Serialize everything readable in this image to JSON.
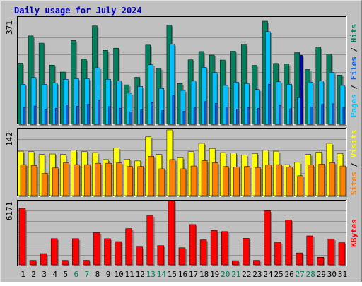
{
  "title": "Daily usage for July 2024",
  "colors": {
    "background": "#c0c0c0",
    "frame_dark": "#808080",
    "frame_light": "#e0e0e0",
    "title": "#0000c0",
    "hits": "#00805c",
    "files": "#00c0ff",
    "pages": "#0060f0",
    "pages_highlight": "#0000e8",
    "visits": "#ffff00",
    "sites": "#ff8000",
    "kbytes": "#ff0000",
    "weekday_label": "#000000",
    "weekend_label": "#00805c"
  },
  "labels": {
    "hits": "Hits",
    "files": "Files",
    "pages": "Pages",
    "visits": "Visits",
    "sites": "Sites",
    "kbytes": "KBytes",
    "sep": " / "
  },
  "chart_data": [
    {
      "type": "bar",
      "panel": "hits-files-pages",
      "ymax_label": "371",
      "ylim": [
        0,
        371
      ],
      "grid": true,
      "categories": [
        "1",
        "2",
        "3",
        "4",
        "5",
        "6",
        "7",
        "8",
        "9",
        "10",
        "11",
        "12",
        "13",
        "14",
        "15",
        "16",
        "17",
        "18",
        "19",
        "20",
        "21",
        "22",
        "23",
        "24",
        "25",
        "26",
        "27",
        "28",
        "29",
        "30",
        "31"
      ],
      "weekend_days": [
        "6",
        "7",
        "13",
        "14",
        "20",
        "21",
        "27",
        "28"
      ],
      "highlight_day": "27",
      "series": [
        {
          "name": "Hits",
          "values": [
            220,
            318,
            292,
            213,
            188,
            302,
            234,
            354,
            266,
            274,
            142,
            169,
            285,
            201,
            357,
            147,
            232,
            262,
            249,
            231,
            263,
            288,
            212,
            371,
            219,
            217,
            258,
            197,
            278,
            252,
            177
          ]
        },
        {
          "name": "Files",
          "values": [
            144,
            168,
            144,
            148,
            162,
            164,
            164,
            203,
            162,
            156,
            112,
            136,
            214,
            129,
            288,
            122,
            157,
            205,
            186,
            140,
            152,
            147,
            125,
            333,
            153,
            144,
            96,
            152,
            156,
            187,
            140
          ]
        },
        {
          "name": "Pages",
          "values": [
            60,
            66,
            52,
            58,
            70,
            65,
            72,
            86,
            64,
            58,
            45,
            52,
            78,
            49,
            103,
            47,
            59,
            82,
            75,
            62,
            55,
            60,
            58,
            144,
            68,
            56,
            248,
            63,
            72,
            74,
            61
          ]
        }
      ]
    },
    {
      "type": "bar",
      "panel": "visits-sites",
      "ymax_label": "142",
      "ylim": [
        0,
        142
      ],
      "grid": true,
      "categories": [
        "1",
        "2",
        "3",
        "4",
        "5",
        "6",
        "7",
        "8",
        "9",
        "10",
        "11",
        "12",
        "13",
        "14",
        "15",
        "16",
        "17",
        "18",
        "19",
        "20",
        "21",
        "22",
        "23",
        "24",
        "25",
        "26",
        "27",
        "28",
        "29",
        "30",
        "31"
      ],
      "series": [
        {
          "name": "Visits",
          "values": [
            96,
            95,
            89,
            90,
            89,
            98,
            95,
            93,
            78,
            103,
            79,
            75,
            127,
            89,
            142,
            82,
            95,
            113,
            102,
            93,
            92,
            88,
            91,
            98,
            96,
            67,
            72,
            89,
            94,
            113,
            91
          ]
        },
        {
          "name": "Sites",
          "values": [
            67,
            65,
            48,
            60,
            71,
            67,
            67,
            70,
            70,
            71,
            63,
            63,
            85,
            58,
            78,
            58,
            64,
            76,
            71,
            63,
            62,
            63,
            61,
            66,
            67,
            62,
            43,
            66,
            68,
            71,
            64
          ]
        }
      ]
    },
    {
      "type": "bar",
      "panel": "kbytes",
      "ymax_label": "6171",
      "ylim": [
        0,
        6171
      ],
      "grid": true,
      "categories": [
        "1",
        "2",
        "3",
        "4",
        "5",
        "6",
        "7",
        "8",
        "9",
        "10",
        "11",
        "12",
        "13",
        "14",
        "15",
        "16",
        "17",
        "18",
        "19",
        "20",
        "21",
        "22",
        "23",
        "24",
        "25",
        "26",
        "27",
        "28",
        "29",
        "30",
        "31"
      ],
      "series": [
        {
          "name": "KBytes",
          "values": [
            5425,
            427,
            1085,
            2519,
            429,
            2519,
            437,
            3100,
            2518,
            2236,
            3487,
            1714,
            4757,
            1847,
            6171,
            1643,
            3874,
            2405,
            3310,
            3198,
            402,
            2550,
            431,
            5207,
            2179,
            4305,
            1147,
            2780,
            731,
            2494,
            2128
          ]
        }
      ]
    }
  ]
}
